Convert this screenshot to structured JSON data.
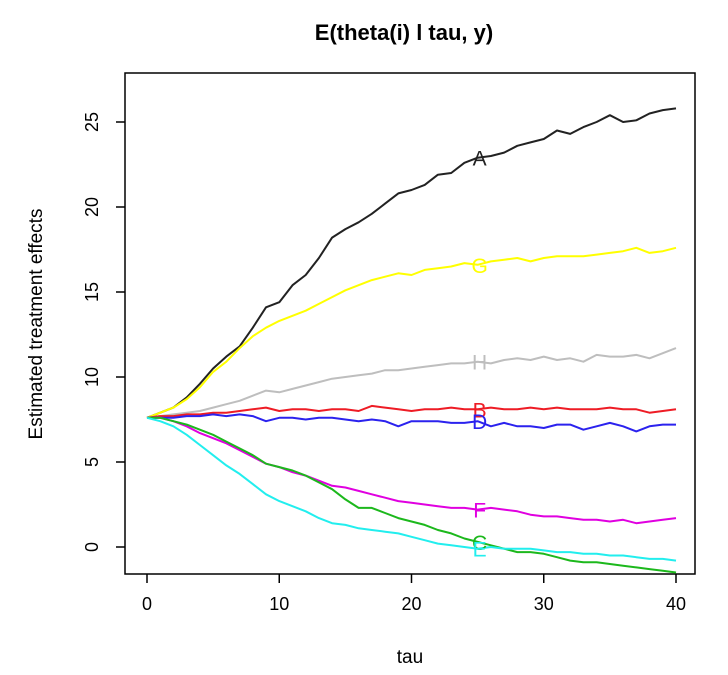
{
  "chart_data": {
    "type": "line",
    "title": "E(theta(i) l tau, y)",
    "xlabel": "tau",
    "ylabel": "Estimated treatment effects",
    "xlim": [
      0,
      40
    ],
    "ylim": [
      -1.5,
      28
    ],
    "x_ticks": [
      0,
      10,
      20,
      30,
      40
    ],
    "y_ticks": [
      0,
      5,
      10,
      15,
      20,
      25
    ],
    "grid": false,
    "legend": "none",
    "x": [
      0,
      1,
      2,
      3,
      4,
      5,
      6,
      7,
      8,
      9,
      10,
      11,
      12,
      13,
      14,
      15,
      16,
      17,
      18,
      19,
      20,
      21,
      22,
      23,
      24,
      25,
      26,
      27,
      28,
      29,
      30,
      31,
      32,
      33,
      34,
      35,
      36,
      37,
      38,
      39,
      40
    ],
    "series": [
      {
        "name": "A",
        "color": "#222222",
        "label_at": 25,
        "values": [
          7.6,
          7.9,
          8.2,
          8.8,
          9.6,
          10.5,
          11.2,
          11.8,
          12.9,
          14.1,
          14.4,
          15.4,
          16.0,
          17.0,
          18.2,
          18.7,
          19.1,
          19.6,
          20.2,
          20.8,
          21.0,
          21.3,
          21.9,
          22.0,
          22.6,
          22.9,
          23.0,
          23.2,
          23.6,
          23.8,
          24.0,
          24.5,
          24.3,
          24.7,
          25.0,
          25.4,
          25.0,
          25.1,
          25.5,
          25.7,
          25.8
        ]
      },
      {
        "name": "G",
        "color": "#ffff00",
        "label_at": 25,
        "values": [
          7.6,
          7.9,
          8.2,
          8.7,
          9.4,
          10.3,
          10.9,
          11.7,
          12.4,
          12.9,
          13.3,
          13.6,
          13.9,
          14.3,
          14.7,
          15.1,
          15.4,
          15.7,
          15.9,
          16.1,
          16.0,
          16.3,
          16.4,
          16.5,
          16.7,
          16.6,
          16.8,
          16.9,
          17.0,
          16.8,
          17.0,
          17.1,
          17.1,
          17.1,
          17.2,
          17.3,
          17.4,
          17.6,
          17.3,
          17.4,
          17.6
        ]
      },
      {
        "name": "H",
        "color": "#bebebe",
        "label_at": 25,
        "values": [
          7.6,
          7.7,
          7.8,
          7.9,
          8.0,
          8.2,
          8.4,
          8.6,
          8.9,
          9.2,
          9.1,
          9.3,
          9.5,
          9.7,
          9.9,
          10.0,
          10.1,
          10.2,
          10.4,
          10.4,
          10.5,
          10.6,
          10.7,
          10.8,
          10.8,
          10.9,
          10.8,
          11.0,
          11.1,
          11.0,
          11.2,
          11.0,
          11.1,
          10.9,
          11.3,
          11.2,
          11.2,
          11.3,
          11.1,
          11.4,
          11.7
        ]
      },
      {
        "name": "B",
        "color": "#ee1c25",
        "label_at": 25,
        "values": [
          7.6,
          7.7,
          7.7,
          7.8,
          7.8,
          7.9,
          7.9,
          8.0,
          8.1,
          8.2,
          8.0,
          8.1,
          8.1,
          8.0,
          8.1,
          8.1,
          8.0,
          8.3,
          8.2,
          8.1,
          8.0,
          8.1,
          8.1,
          8.2,
          8.1,
          8.1,
          8.2,
          8.1,
          8.1,
          8.2,
          8.1,
          8.2,
          8.1,
          8.1,
          8.1,
          8.2,
          8.1,
          8.1,
          7.9,
          8.0,
          8.1
        ]
      },
      {
        "name": "D",
        "color": "#2b22ee",
        "label_at": 25,
        "values": [
          7.6,
          7.6,
          7.6,
          7.7,
          7.7,
          7.8,
          7.7,
          7.8,
          7.7,
          7.4,
          7.6,
          7.6,
          7.5,
          7.6,
          7.6,
          7.5,
          7.4,
          7.5,
          7.4,
          7.1,
          7.4,
          7.4,
          7.4,
          7.3,
          7.3,
          7.4,
          7.1,
          7.3,
          7.1,
          7.1,
          7.0,
          7.2,
          7.2,
          6.9,
          7.1,
          7.3,
          7.1,
          6.8,
          7.1,
          7.2,
          7.2
        ]
      },
      {
        "name": "F",
        "color": "#e000e0",
        "label_at": 25,
        "values": [
          7.6,
          7.6,
          7.4,
          7.1,
          6.7,
          6.4,
          6.1,
          5.7,
          5.3,
          4.9,
          4.7,
          4.4,
          4.2,
          3.9,
          3.6,
          3.5,
          3.3,
          3.1,
          2.9,
          2.7,
          2.6,
          2.5,
          2.4,
          2.3,
          2.3,
          2.2,
          2.3,
          2.2,
          2.1,
          1.9,
          1.8,
          1.8,
          1.7,
          1.6,
          1.6,
          1.5,
          1.6,
          1.4,
          1.5,
          1.6,
          1.7
        ]
      },
      {
        "name": "C",
        "color": "#1cb81c",
        "label_at": 25,
        "values": [
          7.6,
          7.6,
          7.4,
          7.2,
          6.9,
          6.6,
          6.2,
          5.8,
          5.4,
          4.9,
          4.7,
          4.5,
          4.2,
          3.8,
          3.4,
          2.8,
          2.3,
          2.3,
          2.0,
          1.7,
          1.5,
          1.3,
          1.0,
          0.8,
          0.5,
          0.3,
          0.1,
          -0.1,
          -0.3,
          -0.3,
          -0.4,
          -0.6,
          -0.8,
          -0.9,
          -0.9,
          -1.0,
          -1.1,
          -1.2,
          -1.3,
          -1.4,
          -1.5
        ]
      },
      {
        "name": "E",
        "color": "#22eeee",
        "label_at": 25,
        "values": [
          7.6,
          7.4,
          7.1,
          6.6,
          6.0,
          5.4,
          4.8,
          4.3,
          3.7,
          3.1,
          2.7,
          2.4,
          2.1,
          1.7,
          1.4,
          1.3,
          1.1,
          1.0,
          0.9,
          0.8,
          0.6,
          0.4,
          0.2,
          0.1,
          0.0,
          -0.1,
          0.0,
          -0.1,
          -0.1,
          -0.1,
          -0.2,
          -0.3,
          -0.3,
          -0.4,
          -0.4,
          -0.5,
          -0.5,
          -0.6,
          -0.7,
          -0.7,
          -0.8
        ]
      }
    ]
  }
}
